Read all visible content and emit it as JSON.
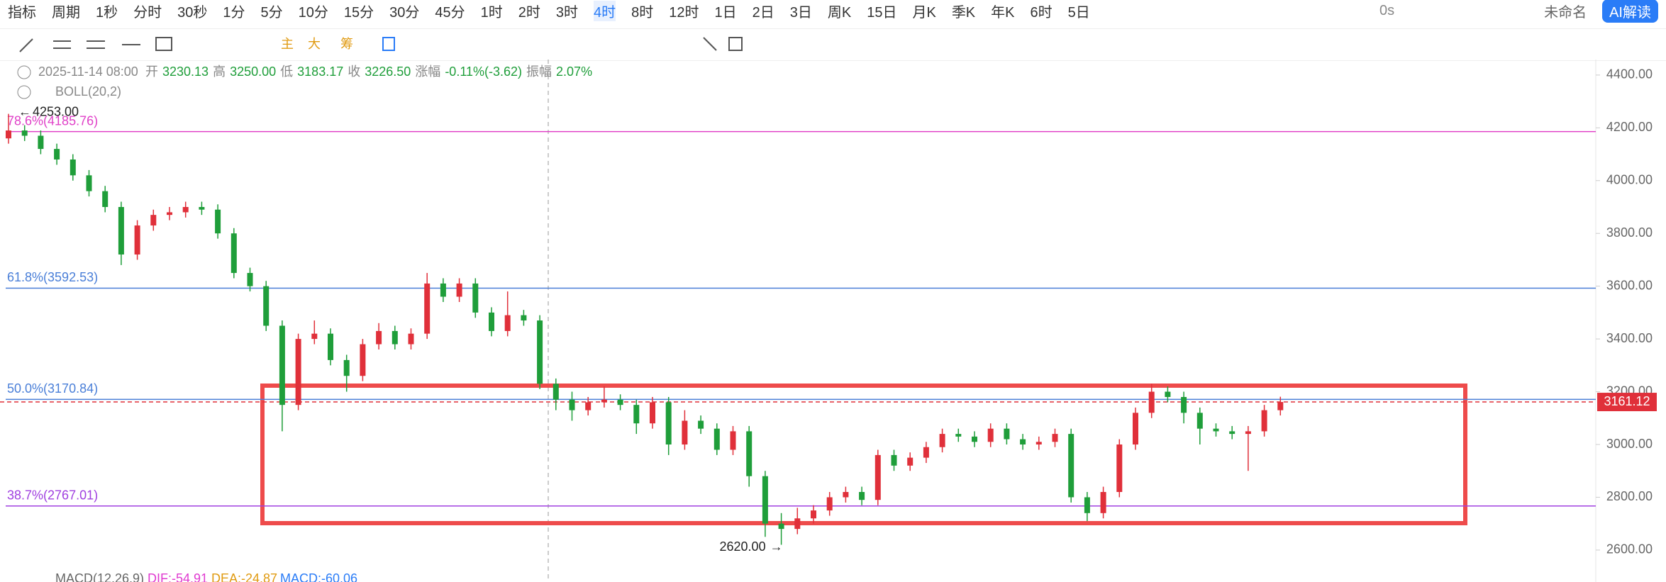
{
  "toolbar": {
    "indicator": "指标",
    "period": "周期",
    "periods": [
      "1秒",
      "分时",
      "30秒",
      "1分",
      "5分",
      "10分",
      "15分",
      "30分",
      "45分",
      "1时",
      "2时",
      "3时",
      "4时",
      "8时",
      "12时",
      "1日",
      "2日",
      "3日",
      "周K",
      "15日",
      "月K",
      "季K",
      "年K",
      "6时",
      "5日"
    ],
    "selected": "4时",
    "timer": "0s",
    "name": "未命名",
    "ai": "AI解读"
  },
  "chart_data": {
    "type": "candlestick",
    "info": {
      "date": "2025-11-14 08:00",
      "open_label": "开",
      "open": "3230.13",
      "high_label": "高",
      "high": "3250.00",
      "low_label": "低",
      "low": "3183.17",
      "close_label": "收",
      "close": "3226.50",
      "change_label": "涨幅",
      "change": "-0.11%(-3.62)",
      "amp_label": "振幅",
      "amp": "2.07%"
    },
    "indicator": "BOLL(20,2)",
    "macd": {
      "name": "MACD(12,26,9)",
      "dif": "DIF:-54.91",
      "dea": "DEA:-24.87",
      "macd": "MACD:-60.06"
    },
    "up_color": "#e0303a",
    "down_color": "#1f9e3a",
    "open": [
      4160,
      4190,
      4170,
      4120,
      4080,
      4020,
      3960,
      3900,
      3720,
      3830,
      3870,
      3880,
      3900,
      3890,
      3800,
      3650,
      3600,
      3450,
      3150,
      3400,
      3420,
      3320,
      3260,
      3380,
      3430,
      3380,
      3420,
      3610,
      3560,
      3610,
      3500,
      3430,
      3490,
      3470,
      3230,
      3170,
      3130,
      3160,
      3170,
      3150,
      3080,
      3160,
      3000,
      3090,
      3060,
      2980,
      3050,
      2880,
      2700,
      2680,
      2720,
      2750,
      2800,
      2820,
      2790,
      2960,
      2920,
      2950,
      2990,
      3040,
      3030,
      3010,
      3060,
      3020,
      3000,
      3010,
      3040,
      2800,
      2740,
      2820,
      3000,
      3120,
      3200,
      3180,
      3120,
      3060,
      3050,
      3040,
      3050,
      3130
    ],
    "high": [
      4253,
      4210,
      4190,
      4140,
      4100,
      4040,
      3980,
      3920,
      3850,
      3890,
      3900,
      3920,
      3920,
      3910,
      3820,
      3670,
      3620,
      3470,
      3420,
      3470,
      3440,
      3340,
      3400,
      3460,
      3450,
      3440,
      3650,
      3630,
      3630,
      3630,
      3520,
      3580,
      3510,
      3490,
      3250,
      3200,
      3180,
      3220,
      3190,
      3170,
      3180,
      3180,
      3130,
      3110,
      3080,
      3070,
      3070,
      2900,
      2740,
      2760,
      2770,
      2820,
      2840,
      2840,
      2980,
      2980,
      2970,
      3010,
      3060,
      3060,
      3050,
      3080,
      3080,
      3040,
      3030,
      3060,
      3060,
      2820,
      2840,
      3020,
      3140,
      3230,
      3220,
      3200,
      3140,
      3080,
      3070,
      3070,
      3150,
      3181
    ],
    "low": [
      4140,
      4150,
      4100,
      4060,
      4000,
      3940,
      3880,
      3680,
      3700,
      3810,
      3850,
      3860,
      3870,
      3780,
      3630,
      3580,
      3430,
      3050,
      3130,
      3380,
      3300,
      3200,
      3240,
      3360,
      3360,
      3360,
      3400,
      3540,
      3540,
      3480,
      3410,
      3410,
      3450,
      3210,
      3130,
      3090,
      3110,
      3140,
      3130,
      3040,
      3060,
      2960,
      2980,
      3040,
      2960,
      2960,
      2840,
      2650,
      2620,
      2660,
      2700,
      2730,
      2780,
      2770,
      2770,
      2900,
      2900,
      2930,
      2970,
      3010,
      2990,
      2990,
      3000,
      2980,
      2980,
      2990,
      2780,
      2710,
      2720,
      2800,
      2980,
      3100,
      3160,
      3080,
      3000,
      3030,
      3020,
      2900,
      3030,
      3110
    ],
    "close": [
      4190,
      4170,
      4120,
      4080,
      4020,
      3960,
      3900,
      3720,
      3830,
      3870,
      3880,
      3900,
      3890,
      3800,
      3650,
      3600,
      3450,
      3150,
      3400,
      3420,
      3320,
      3260,
      3380,
      3430,
      3380,
      3420,
      3610,
      3560,
      3610,
      3500,
      3430,
      3490,
      3470,
      3230,
      3170,
      3130,
      3160,
      3170,
      3150,
      3080,
      3160,
      3000,
      3090,
      3060,
      2980,
      3050,
      2880,
      2700,
      2680,
      2720,
      2750,
      2800,
      2820,
      2790,
      2960,
      2920,
      2950,
      2990,
      3040,
      3030,
      3010,
      3060,
      3020,
      3000,
      3010,
      3040,
      2800,
      2740,
      2820,
      3000,
      3120,
      3200,
      3180,
      3120,
      3060,
      3050,
      3040,
      3050,
      3130,
      3161
    ],
    "ylim": [
      2495,
      4448
    ],
    "yticks": [
      {
        "value": 2600,
        "label": "2600.00"
      },
      {
        "value": 2800,
        "label": "2800.00"
      },
      {
        "value": 3000,
        "label": "3000.00"
      },
      {
        "value": 3200,
        "label": "3200.00"
      },
      {
        "value": 3400,
        "label": "3400.00"
      },
      {
        "value": 3600,
        "label": "3600.00"
      },
      {
        "value": 3800,
        "label": "3800.00"
      },
      {
        "value": 4000,
        "label": "4000.00"
      },
      {
        "value": 4200,
        "label": "4200.00"
      },
      {
        "value": 4400,
        "label": "4400.00"
      }
    ],
    "fib_lines": [
      {
        "value": 4185.76,
        "label": "78.6%(4185.76)",
        "color": "#e040c8"
      },
      {
        "value": 3592.53,
        "label": "61.8%(3592.53)",
        "color": "#4a7fd8"
      },
      {
        "value": 3170.84,
        "label": "50.0%(3170.84)",
        "color": "#4a7fd8"
      },
      {
        "value": 2767.01,
        "label": "38.7%(2767.01)",
        "color": "#a040e0"
      }
    ],
    "last_price": {
      "value": 3161.12,
      "label": "3161.12",
      "color": "#e0303a"
    },
    "max_label": "4253.00",
    "min_label": "2620.00"
  }
}
